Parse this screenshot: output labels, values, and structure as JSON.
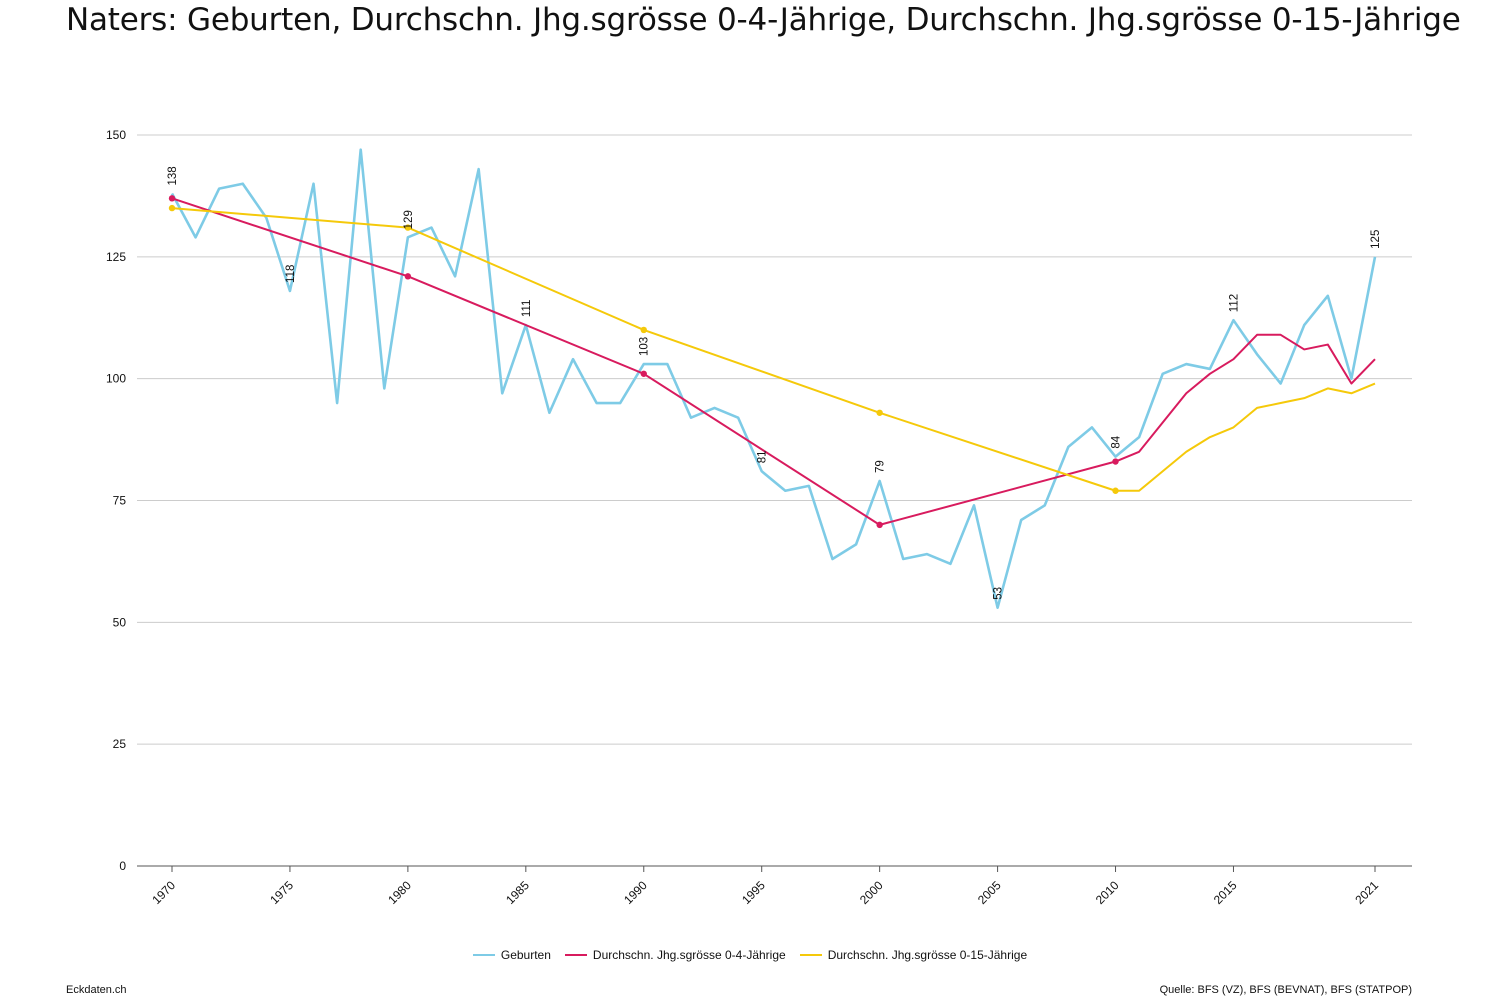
{
  "header": {
    "title": "Naters: Geburten, Durchschn. Jhg.sgrösse 0-4-Jährige, Durchschn. Jhg.sgrösse 0-15-Jährige"
  },
  "footer": {
    "left": "Eckdaten.ch",
    "right": "Quelle: BFS (VZ), BFS (BEVNAT), BFS (STATPOP)"
  },
  "chart_data": {
    "type": "line",
    "title": "Naters: Geburten, Durchschn. Jhg.sgrösse 0-4-Jährige, Durchschn. Jhg.sgrösse 0-15-Jährige",
    "xlabel": "",
    "ylabel": "",
    "ylim": [
      0,
      150
    ],
    "xlim": [
      1970,
      2021
    ],
    "y_ticks": [
      0,
      25,
      50,
      75,
      100,
      125,
      150
    ],
    "x_ticks": [
      1970,
      1975,
      1980,
      1985,
      1990,
      1995,
      2000,
      2005,
      2010,
      2015,
      2021
    ],
    "grid": "horizontal",
    "legend_position": "bottom",
    "series": [
      {
        "name": "Geburten",
        "color": "#7ecbe6",
        "x": [
          1970,
          1971,
          1972,
          1973,
          1974,
          1975,
          1976,
          1977,
          1978,
          1979,
          1980,
          1981,
          1982,
          1983,
          1984,
          1985,
          1986,
          1987,
          1988,
          1989,
          1990,
          1991,
          1992,
          1993,
          1994,
          1995,
          1996,
          1997,
          1998,
          1999,
          2000,
          2001,
          2002,
          2003,
          2004,
          2005,
          2006,
          2007,
          2008,
          2009,
          2010,
          2011,
          2012,
          2013,
          2014,
          2015,
          2016,
          2017,
          2018,
          2019,
          2020,
          2021
        ],
        "values": [
          138,
          129,
          139,
          140,
          133,
          118,
          140,
          95,
          147,
          98,
          129,
          131,
          121,
          143,
          97,
          111,
          93,
          104,
          95,
          95,
          103,
          103,
          92,
          94,
          92,
          81,
          77,
          78,
          63,
          66,
          79,
          63,
          64,
          62,
          74,
          53,
          71,
          74,
          86,
          90,
          84,
          88,
          101,
          103,
          102,
          112,
          105,
          99,
          111,
          117,
          100,
          125
        ],
        "labels": [
          [
            1970,
            "138"
          ],
          [
            1975,
            "118"
          ],
          [
            1980,
            "129"
          ],
          [
            1985,
            "111"
          ],
          [
            1990,
            "103"
          ],
          [
            1995,
            "81"
          ],
          [
            2000,
            "79"
          ],
          [
            2005,
            "53"
          ],
          [
            2010,
            "84"
          ],
          [
            2015,
            "112"
          ],
          [
            2021,
            "125"
          ]
        ]
      },
      {
        "name": "Durchschn. Jhg.sgrösse 0-4-Jährige",
        "color": "#d81b5e",
        "x": [
          1970,
          1980,
          1990,
          2000,
          2010,
          2011,
          2012,
          2013,
          2014,
          2015,
          2016,
          2017,
          2018,
          2019,
          2020,
          2021
        ],
        "values": [
          137,
          121,
          101,
          70,
          83,
          85,
          91,
          97,
          101,
          104,
          109,
          109,
          106,
          107,
          99,
          104
        ],
        "markers": [
          1970,
          1980,
          1990,
          2000,
          2010
        ]
      },
      {
        "name": "Durchschn. Jhg.sgrösse 0-15-Jährige",
        "color": "#f5c90a",
        "x": [
          1970,
          1980,
          1990,
          2000,
          2010,
          2011,
          2012,
          2013,
          2014,
          2015,
          2016,
          2017,
          2018,
          2019,
          2020,
          2021
        ],
        "values": [
          135,
          131,
          110,
          93,
          77,
          77,
          81,
          85,
          88,
          90,
          94,
          95,
          96,
          98,
          97,
          99
        ],
        "markers": [
          1970,
          1980,
          1990,
          2000,
          2010
        ]
      }
    ]
  }
}
